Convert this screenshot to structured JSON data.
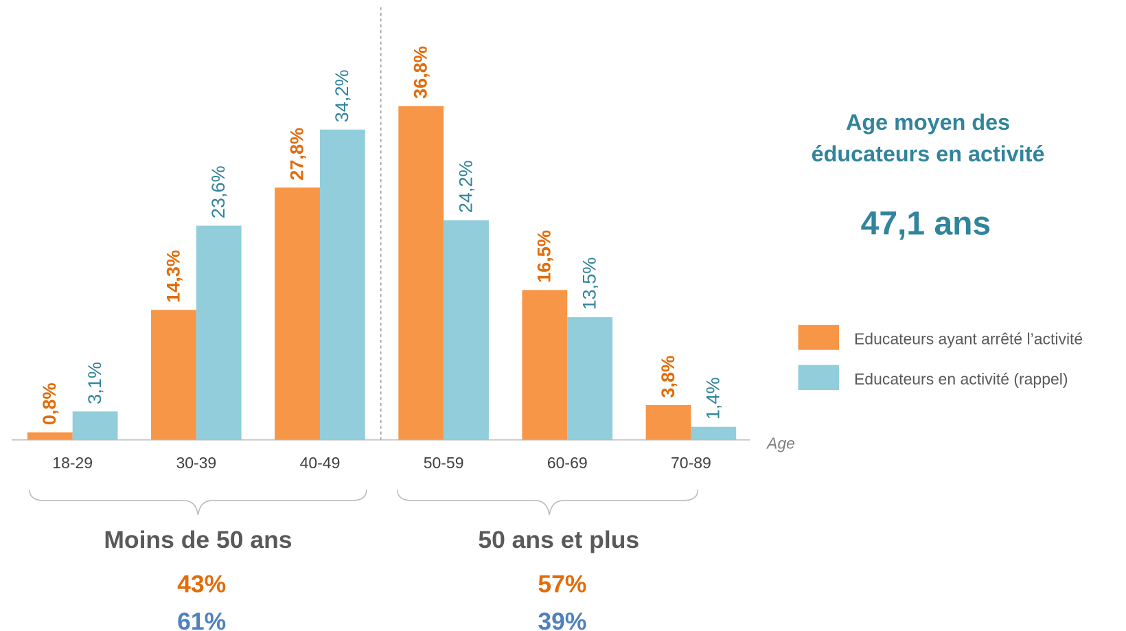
{
  "chart_data": {
    "type": "bar",
    "categories": [
      "18-29",
      "30-39",
      "40-49",
      "50-59",
      "60-69",
      "70-89"
    ],
    "series": [
      {
        "name": "Educateurs ayant arrêté l’activité",
        "color": "#f79646",
        "label_color": "#e36c0a",
        "values": [
          0.8,
          14.3,
          27.8,
          36.8,
          16.5,
          3.8
        ],
        "value_labels": [
          "0,8%",
          "14,3%",
          "27,8%",
          "36,8%",
          "16,5%",
          "3,8%"
        ]
      },
      {
        "name": "Educateurs en activité (rappel)",
        "color": "#92cddc",
        "label_color": "#31849b",
        "values": [
          3.1,
          23.6,
          34.2,
          24.2,
          13.5,
          1.4
        ],
        "value_labels": [
          "3,1%",
          "23,6%",
          "34,2%",
          "24,2%",
          "13,5%",
          "1,4%"
        ]
      }
    ],
    "x_label": "Age",
    "groups": [
      {
        "name": "Moins de 50 ans",
        "values": [
          43,
          61
        ],
        "value_labels": [
          "43%",
          "61%"
        ]
      },
      {
        "name": "50 ans et plus",
        "values": [
          57,
          39
        ],
        "value_labels": [
          "57%",
          "39%"
        ]
      }
    ],
    "stat": {
      "title_lines": [
        "Age moyen des",
        "éducateurs en activité"
      ],
      "value": 47.1,
      "value_label": "47,1 ans"
    }
  }
}
